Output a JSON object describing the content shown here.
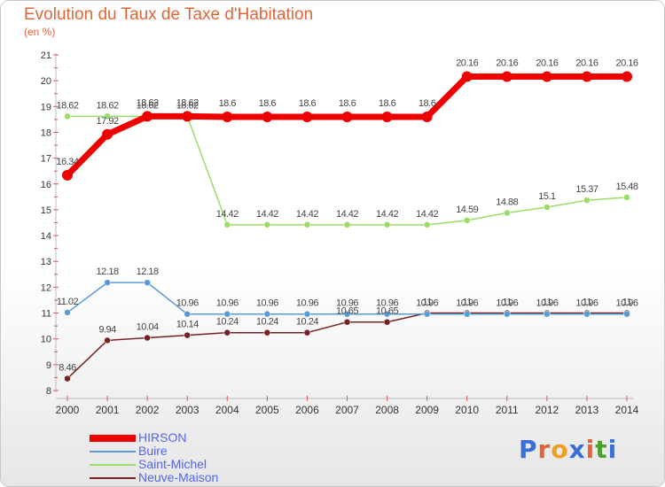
{
  "header": {
    "title": "Evolution du Taux de Taxe d'Habitation",
    "subtitle": "(en %)"
  },
  "logo": {
    "text": "Proxiti"
  },
  "chart_data": {
    "type": "line",
    "x": [
      "2000",
      "2001",
      "2002",
      "2003",
      "2004",
      "2005",
      "2006",
      "2007",
      "2008",
      "2009",
      "2010",
      "2011",
      "2012",
      "2013",
      "2014"
    ],
    "ylim": [
      8,
      21
    ],
    "yticks": [
      "8",
      "9",
      "10",
      "11",
      "12",
      "13",
      "14",
      "15",
      "16",
      "17",
      "18",
      "19",
      "20",
      "21"
    ],
    "grid": false,
    "legend_position": "bottom-left",
    "series": [
      {
        "name": "HIRSON",
        "color": "#ee0000",
        "values": [
          16.34,
          17.92,
          18.62,
          18.62,
          18.6,
          18.6,
          18.6,
          18.6,
          18.6,
          18.6,
          20.16,
          20.16,
          20.16,
          20.16,
          20.16
        ],
        "labels": [
          "16.34",
          "17.92",
          "18.62",
          "18.62",
          "18.6",
          "18.6",
          "18.6",
          "18.6",
          "18.6",
          "18.6",
          "20.16",
          "20.16",
          "20.16",
          "20.16",
          "20.16"
        ]
      },
      {
        "name": "Buire",
        "color": "#5b9bd5",
        "values": [
          11.02,
          12.18,
          12.18,
          10.96,
          10.96,
          10.96,
          10.96,
          10.96,
          10.96,
          10.96,
          10.96,
          10.96,
          10.96,
          10.96,
          10.96
        ],
        "labels": [
          "11.02",
          "12.18",
          "12.18",
          "10.96",
          "10.96",
          "10.96",
          "10.96",
          "10.96",
          "10.96",
          "10.96",
          "10.96",
          "10.96",
          "10.96",
          "10.96",
          "10.96"
        ]
      },
      {
        "name": "Saint-Michel",
        "color": "#99dd66",
        "values": [
          18.62,
          18.62,
          18.62,
          18.62,
          14.42,
          14.42,
          14.42,
          14.42,
          14.42,
          14.42,
          14.59,
          14.88,
          15.1,
          15.37,
          15.48
        ],
        "labels": [
          "18.62",
          "18.62",
          "18.62",
          "18.62",
          "14.42",
          "14.42",
          "14.42",
          "14.42",
          "14.42",
          "14.42",
          "14.59",
          "14.88",
          "15.1",
          "15.37",
          "15.48"
        ]
      },
      {
        "name": "Neuve-Maison",
        "color": "#772222",
        "values": [
          8.46,
          9.94,
          10.04,
          10.14,
          10.24,
          10.24,
          10.24,
          10.65,
          10.65,
          11,
          11,
          11,
          11,
          11,
          11
        ],
        "labels": [
          "8.46",
          "9.94",
          "10.04",
          "10.14",
          "10.24",
          "10.24",
          "10.24",
          "10.65",
          "10.65",
          "11",
          "11",
          "11",
          "11",
          "11",
          "11"
        ]
      }
    ]
  }
}
